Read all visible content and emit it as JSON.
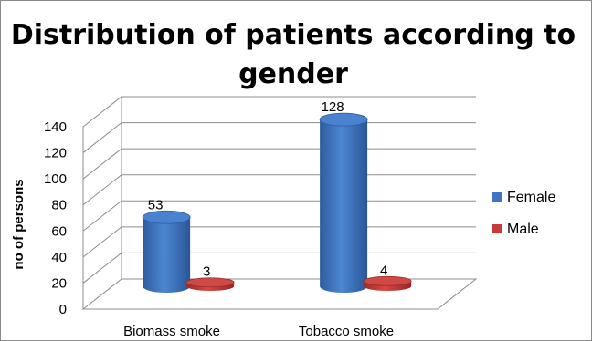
{
  "chart_data": {
    "type": "bar",
    "title_lines": [
      "Distribution of patients according to",
      "gender"
    ],
    "categories": [
      "Biomass smoke",
      "Tobacco smoke"
    ],
    "series": [
      {
        "name": "Female",
        "values": [
          53,
          128
        ],
        "color": "#3d75c4"
      },
      {
        "name": "Male",
        "values": [
          3,
          4
        ],
        "color": "#c53b38"
      }
    ],
    "xlabel": "",
    "ylabel": "no of persons",
    "ylim": [
      0,
      140
    ],
    "yticks": [
      0,
      20,
      40,
      60,
      80,
      100,
      120,
      140
    ],
    "grid": true,
    "three_d": true,
    "legend_position": "right"
  }
}
